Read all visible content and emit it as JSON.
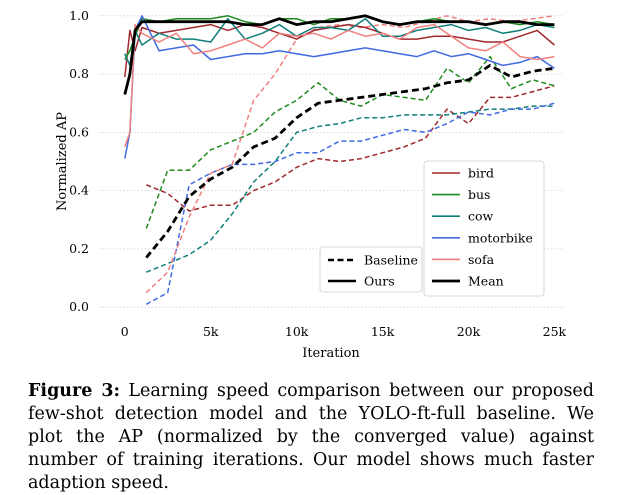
{
  "chart_data": {
    "type": "line",
    "ylabel": "Normalized AP",
    "xlabel": "Iteration",
    "xlim": [
      -1500,
      25500
    ],
    "ylim": [
      -0.02,
      1.02
    ],
    "xticks": [
      0,
      5000,
      10000,
      15000,
      20000,
      25000
    ],
    "xtick_labels": [
      "0",
      "5k",
      "10k",
      "15k",
      "20k",
      "25k"
    ],
    "yticks": [
      0.0,
      0.2,
      0.4,
      0.6,
      0.8,
      1.0
    ],
    "ytick_labels": [
      "0.0",
      "0.2",
      "0.4",
      "0.6",
      "0.8",
      "1.0"
    ],
    "grid": "horizontal-dotted",
    "series": [
      {
        "name": "bird",
        "color": "#a0282d",
        "style": "solid",
        "width": 1.5,
        "x": [
          0,
          300,
          600,
          1000,
          2000,
          3000,
          4000,
          5000,
          6000,
          7000,
          8000,
          9000,
          10000,
          11000,
          12000,
          13000,
          14000,
          15000,
          16000,
          17000,
          18000,
          19000,
          20000,
          21000,
          22000,
          23000,
          24000,
          25000
        ],
        "y": [
          0.79,
          0.95,
          0.88,
          0.96,
          0.94,
          0.95,
          0.96,
          0.97,
          0.95,
          0.97,
          0.96,
          0.94,
          0.92,
          0.95,
          0.96,
          0.97,
          0.96,
          0.94,
          0.92,
          0.92,
          0.93,
          0.93,
          0.92,
          0.91,
          0.91,
          0.93,
          0.95,
          0.9
        ]
      },
      {
        "name": "bus",
        "color": "#1f8a1f",
        "style": "solid",
        "width": 1.5,
        "x": [
          0,
          300,
          600,
          1000,
          2000,
          3000,
          4000,
          5000,
          6000,
          7000,
          8000,
          9000,
          10000,
          11000,
          12000,
          13000,
          14000,
          15000,
          16000,
          17000,
          18000,
          19000,
          20000,
          21000,
          22000,
          23000,
          24000,
          25000
        ],
        "y": [
          0.85,
          0.88,
          0.93,
          0.99,
          0.98,
          0.99,
          0.99,
          0.99,
          1.0,
          0.98,
          0.97,
          0.99,
          0.99,
          0.97,
          0.99,
          0.99,
          1.0,
          0.98,
          0.97,
          0.98,
          0.99,
          0.98,
          0.98,
          0.97,
          0.98,
          0.97,
          0.98,
          0.97
        ]
      },
      {
        "name": "cow",
        "color": "#0f7f7a",
        "style": "solid",
        "width": 1.5,
        "x": [
          0,
          300,
          600,
          1000,
          2000,
          3000,
          4000,
          5000,
          6000,
          7000,
          8000,
          9000,
          10000,
          11000,
          12000,
          13000,
          14000,
          15000,
          16000,
          17000,
          18000,
          19000,
          20000,
          21000,
          22000,
          23000,
          24000,
          25000
        ],
        "y": [
          0.87,
          0.83,
          0.95,
          0.9,
          0.94,
          0.92,
          0.92,
          0.91,
          0.99,
          0.92,
          0.94,
          0.97,
          0.93,
          0.96,
          0.96,
          0.95,
          0.99,
          0.93,
          0.93,
          0.95,
          0.96,
          0.97,
          0.95,
          0.96,
          0.94,
          0.95,
          0.97,
          0.96
        ]
      },
      {
        "name": "motorbike",
        "color": "#4169e1",
        "style": "solid",
        "width": 1.5,
        "x": [
          0,
          300,
          600,
          1000,
          2000,
          3000,
          4000,
          5000,
          6000,
          7000,
          8000,
          9000,
          10000,
          11000,
          12000,
          13000,
          14000,
          15000,
          16000,
          17000,
          18000,
          19000,
          20000,
          21000,
          22000,
          23000,
          24000,
          25000
        ],
        "y": [
          0.51,
          0.6,
          0.95,
          1.0,
          0.88,
          0.89,
          0.9,
          0.85,
          0.86,
          0.87,
          0.87,
          0.88,
          0.87,
          0.86,
          0.87,
          0.88,
          0.89,
          0.88,
          0.87,
          0.86,
          0.88,
          0.86,
          0.87,
          0.85,
          0.83,
          0.84,
          0.86,
          0.82
        ]
      },
      {
        "name": "sofa",
        "color": "#f08080",
        "style": "solid",
        "width": 1.5,
        "x": [
          0,
          300,
          600,
          1000,
          2000,
          3000,
          4000,
          5000,
          6000,
          7000,
          8000,
          9000,
          10000,
          11000,
          12000,
          13000,
          14000,
          15000,
          16000,
          17000,
          18000,
          19000,
          20000,
          21000,
          22000,
          23000,
          24000,
          25000
        ],
        "y": [
          0.55,
          0.6,
          0.97,
          0.94,
          0.91,
          0.94,
          0.87,
          0.88,
          0.9,
          0.92,
          0.89,
          0.94,
          0.93,
          0.94,
          0.92,
          0.95,
          0.93,
          0.94,
          0.92,
          0.96,
          0.97,
          0.93,
          0.89,
          0.88,
          0.91,
          0.86,
          0.85,
          0.86
        ]
      },
      {
        "name": "Mean",
        "color": "#000000",
        "style": "solid",
        "width": 2.8,
        "x": [
          0,
          300,
          600,
          1000,
          2000,
          3000,
          4000,
          5000,
          6000,
          7000,
          8000,
          9000,
          10000,
          11000,
          12000,
          13000,
          14000,
          15000,
          16000,
          17000,
          18000,
          19000,
          20000,
          21000,
          22000,
          23000,
          24000,
          25000
        ],
        "y": [
          0.73,
          0.8,
          0.95,
          0.98,
          0.98,
          0.98,
          0.98,
          0.98,
          0.98,
          0.97,
          0.97,
          0.99,
          0.97,
          0.98,
          0.98,
          0.99,
          1.0,
          0.98,
          0.97,
          0.98,
          0.98,
          0.98,
          0.98,
          0.97,
          0.98,
          0.98,
          0.97,
          0.97
        ]
      },
      {
        "name": "bird (baseline)",
        "color": "#a0282d",
        "style": "dashed",
        "width": 1.5,
        "x": [
          1250,
          2500,
          3750,
          5000,
          6250,
          7500,
          8750,
          10000,
          11250,
          12500,
          13750,
          15000,
          16250,
          17500,
          18750,
          20000,
          21250,
          22500,
          23750,
          25000
        ],
        "y": [
          0.42,
          0.39,
          0.33,
          0.35,
          0.35,
          0.4,
          0.43,
          0.48,
          0.51,
          0.5,
          0.51,
          0.53,
          0.55,
          0.58,
          0.68,
          0.63,
          0.72,
          0.72,
          0.74,
          0.76
        ]
      },
      {
        "name": "bus (baseline)",
        "color": "#1f8a1f",
        "style": "dashed",
        "width": 1.5,
        "x": [
          1250,
          2500,
          3750,
          5000,
          6250,
          7500,
          8750,
          10000,
          11250,
          12500,
          13750,
          15000,
          16250,
          17500,
          18750,
          20000,
          21250,
          22500,
          23750,
          25000
        ],
        "y": [
          0.27,
          0.47,
          0.47,
          0.54,
          0.57,
          0.6,
          0.67,
          0.71,
          0.77,
          0.71,
          0.69,
          0.73,
          0.72,
          0.71,
          0.82,
          0.77,
          0.86,
          0.75,
          0.78,
          0.76
        ]
      },
      {
        "name": "cow (baseline)",
        "color": "#0f7f7a",
        "style": "dashed",
        "width": 1.5,
        "x": [
          1250,
          2500,
          3750,
          5000,
          6250,
          7500,
          8750,
          10000,
          11250,
          12500,
          13750,
          15000,
          16250,
          17500,
          18750,
          20000,
          21250,
          22500,
          23750,
          25000
        ],
        "y": [
          0.12,
          0.15,
          0.18,
          0.23,
          0.32,
          0.43,
          0.5,
          0.6,
          0.62,
          0.63,
          0.65,
          0.65,
          0.66,
          0.66,
          0.66,
          0.67,
          0.68,
          0.68,
          0.69,
          0.69
        ]
      },
      {
        "name": "motorbike (baseline)",
        "color": "#4169e1",
        "style": "dashed",
        "width": 1.5,
        "x": [
          1250,
          2500,
          3750,
          5000,
          6250,
          7500,
          8750,
          10000,
          11250,
          12500,
          13750,
          15000,
          16250,
          17500,
          18750,
          20000,
          21250,
          22500,
          23750,
          25000
        ],
        "y": [
          0.01,
          0.05,
          0.42,
          0.46,
          0.49,
          0.49,
          0.5,
          0.53,
          0.53,
          0.57,
          0.57,
          0.59,
          0.61,
          0.6,
          0.63,
          0.67,
          0.66,
          0.68,
          0.68,
          0.7
        ]
      },
      {
        "name": "sofa (baseline)",
        "color": "#f08080",
        "style": "dashed",
        "width": 1.5,
        "x": [
          1250,
          2500,
          3750,
          5000,
          6250,
          7500,
          8750,
          10000,
          11250,
          12500,
          13750,
          15000,
          16250,
          17500,
          18750,
          20000,
          21250,
          22500,
          23750,
          25000
        ],
        "y": [
          0.05,
          0.12,
          0.31,
          0.46,
          0.49,
          0.71,
          0.8,
          0.92,
          0.96,
          0.97,
          0.96,
          0.97,
          0.96,
          0.98,
          1.0,
          0.98,
          0.99,
          0.98,
          0.99,
          1.0
        ]
      },
      {
        "name": "Mean (baseline)",
        "color": "#000000",
        "style": "dashed",
        "width": 2.8,
        "x": [
          1250,
          2500,
          3750,
          5000,
          6250,
          7500,
          8750,
          10000,
          11250,
          12500,
          13750,
          15000,
          16250,
          17500,
          18750,
          20000,
          21250,
          22500,
          23750,
          25000
        ],
        "y": [
          0.17,
          0.26,
          0.38,
          0.44,
          0.48,
          0.55,
          0.58,
          0.65,
          0.7,
          0.71,
          0.72,
          0.73,
          0.74,
          0.75,
          0.77,
          0.78,
          0.83,
          0.79,
          0.81,
          0.82
        ]
      }
    ],
    "legend_left": [
      {
        "label": "Baseline",
        "style": "dashed"
      },
      {
        "label": "Ours",
        "style": "solid"
      }
    ],
    "legend_right": [
      {
        "label": "bird",
        "color": "#a0282d"
      },
      {
        "label": "bus",
        "color": "#1f8a1f"
      },
      {
        "label": "cow",
        "color": "#0f7f7a"
      },
      {
        "label": "motorbike",
        "color": "#4169e1"
      },
      {
        "label": "sofa",
        "color": "#f08080"
      },
      {
        "label": "Mean",
        "color": "#000000"
      }
    ]
  },
  "caption": {
    "label": "Figure 3:",
    "text": " Learning speed comparison between our proposed few-shot detection model and the YOLO-ft-full baseline. We plot the AP (normalized by the converged value) against number of training iterations. Our model shows much faster adaption speed."
  }
}
